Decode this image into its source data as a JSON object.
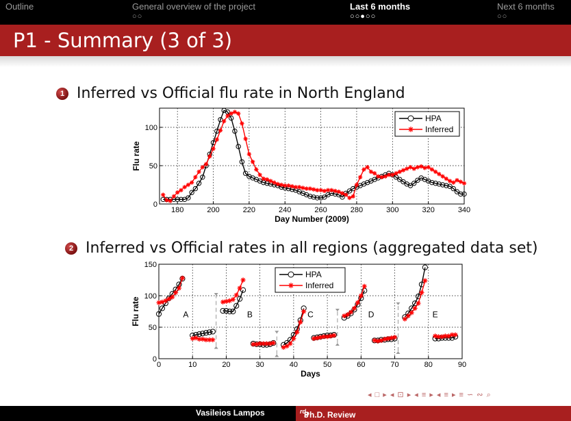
{
  "nav": [
    {
      "label": "Outline",
      "dots": "",
      "active": false
    },
    {
      "label": "General overview of the project",
      "dots": "○○",
      "active": false
    },
    {
      "label": "Last 6 months",
      "dots": "○○●○○",
      "active": true
    },
    {
      "label": "Next 6 months",
      "dots": "○○",
      "active": false
    }
  ],
  "slide": {
    "title": "P1 - Summary (3 of 3)"
  },
  "items": [
    {
      "number": "1",
      "text": "Inferred vs Official flu rate in North England"
    },
    {
      "number": "2",
      "text": "Inferred vs Official rates in all regions (aggregated data set)"
    }
  ],
  "colors": {
    "hpa": "#000000",
    "inferred": "#ff0000",
    "accent": "#a81f1f"
  },
  "chart_data": [
    {
      "type": "line",
      "title": "Inferred vs Official flu rate in North England",
      "xlabel": "Day Number (2009)",
      "ylabel": "Flu rate",
      "xlim": [
        170,
        340
      ],
      "ylim": [
        0,
        125
      ],
      "xticks": [
        180,
        200,
        220,
        240,
        260,
        280,
        300,
        320,
        340
      ],
      "yticks": [
        0,
        50,
        100
      ],
      "grid": true,
      "legend_position": "top-right",
      "series": [
        {
          "name": "HPA",
          "marker": "circle",
          "color": "#000000",
          "x": [
            172,
            174,
            176,
            178,
            180,
            182,
            184,
            186,
            188,
            190,
            192,
            194,
            196,
            198,
            200,
            202,
            204,
            206,
            208,
            210,
            212,
            214,
            216,
            218,
            220,
            222,
            224,
            226,
            228,
            230,
            232,
            234,
            236,
            238,
            240,
            242,
            244,
            246,
            248,
            250,
            252,
            254,
            256,
            258,
            260,
            262,
            264,
            266,
            268,
            270,
            272,
            274,
            276,
            278,
            280,
            282,
            284,
            286,
            288,
            290,
            292,
            294,
            296,
            298,
            300,
            302,
            304,
            306,
            308,
            310,
            312,
            314,
            316,
            318,
            320,
            322,
            324,
            326,
            328,
            330,
            332,
            334,
            336,
            338,
            340
          ],
          "values": [
            6,
            6,
            6,
            6,
            6,
            6,
            6,
            8,
            15,
            20,
            27,
            35,
            50,
            65,
            80,
            95,
            110,
            122,
            120,
            112,
            95,
            75,
            55,
            40,
            36,
            34,
            32,
            30,
            28,
            27,
            26,
            25,
            24,
            22,
            21,
            20,
            19,
            18,
            16,
            14,
            12,
            10,
            9,
            8,
            8,
            9,
            12,
            14,
            13,
            12,
            9,
            14,
            17,
            20,
            22,
            24,
            26,
            28,
            30,
            32,
            34,
            36,
            38,
            40,
            38,
            35,
            32,
            29,
            26,
            24,
            27,
            31,
            34,
            32,
            30,
            28,
            27,
            26,
            25,
            24,
            23,
            20,
            16,
            13,
            13
          ]
        },
        {
          "name": "Inferred",
          "marker": "star",
          "color": "#ff0000",
          "x": [
            172,
            174,
            176,
            178,
            180,
            182,
            184,
            186,
            188,
            190,
            192,
            194,
            196,
            198,
            200,
            202,
            204,
            206,
            208,
            210,
            212,
            214,
            216,
            218,
            220,
            222,
            224,
            226,
            228,
            230,
            232,
            234,
            236,
            238,
            240,
            242,
            244,
            246,
            248,
            250,
            252,
            254,
            256,
            258,
            260,
            262,
            264,
            266,
            268,
            270,
            272,
            274,
            276,
            278,
            280,
            282,
            284,
            286,
            288,
            290,
            292,
            294,
            296,
            298,
            300,
            302,
            304,
            306,
            308,
            310,
            312,
            314,
            316,
            318,
            320,
            322,
            324,
            326,
            328,
            330,
            332,
            334,
            336,
            338,
            340
          ],
          "values": [
            12,
            5,
            4,
            10,
            15,
            18,
            22,
            25,
            28,
            35,
            42,
            48,
            52,
            62,
            72,
            84,
            96,
            108,
            115,
            118,
            120,
            118,
            105,
            85,
            65,
            55,
            45,
            38,
            33,
            32,
            30,
            28,
            26,
            25,
            24,
            24,
            23,
            22,
            22,
            21,
            20,
            20,
            19,
            18,
            18,
            17,
            18,
            18,
            17,
            16,
            14,
            12,
            8,
            10,
            25,
            35,
            45,
            48,
            42,
            40,
            36,
            35,
            36,
            38,
            38,
            40,
            42,
            44,
            46,
            48,
            46,
            48,
            49,
            47,
            48,
            45,
            42,
            39,
            36,
            33,
            30,
            28,
            31,
            29,
            27
          ]
        }
      ]
    },
    {
      "type": "line",
      "title": "Inferred vs Official rates in all regions (aggregated data set)",
      "xlabel": "Days",
      "ylabel": "Flu rate",
      "xlim": [
        0,
        90
      ],
      "ylim": [
        0,
        150
      ],
      "xticks": [
        0,
        10,
        20,
        30,
        40,
        50,
        60,
        70,
        80,
        90
      ],
      "yticks": [
        0,
        50,
        100,
        150
      ],
      "grid": true,
      "legend_position": "top",
      "region_labels": [
        {
          "text": "A",
          "x": 8,
          "y": 66
        },
        {
          "text": "B",
          "x": 27,
          "y": 66
        },
        {
          "text": "C",
          "x": 45,
          "y": 66
        },
        {
          "text": "D",
          "x": 63,
          "y": 66
        },
        {
          "text": "E",
          "x": 82,
          "y": 66
        }
      ],
      "separators": [
        {
          "x": 17,
          "y_from": 20,
          "y_to": 100
        },
        {
          "x": 35,
          "y_from": 7,
          "y_to": 40
        },
        {
          "x": 53,
          "y_from": 25,
          "y_to": 75
        },
        {
          "x": 71,
          "y_from": 12,
          "y_to": 85
        }
      ],
      "series": [
        {
          "name": "HPA",
          "marker": "circle",
          "color": "#000000",
          "segments": [
            {
              "x": [
                0,
                1,
                2,
                3,
                4,
                5,
                6,
                7
              ],
              "values": [
                71,
                80,
                88,
                96,
                103,
                110,
                118,
                127
              ]
            },
            {
              "x": [
                10,
                11,
                12,
                13,
                14,
                15,
                16
              ],
              "values": [
                37,
                38,
                39,
                40,
                41,
                42,
                43
              ]
            },
            {
              "x": [
                19,
                20,
                21,
                22,
                23,
                24,
                25
              ],
              "values": [
                76,
                76,
                75,
                75,
                84,
                95,
                109
              ]
            },
            {
              "x": [
                28,
                29,
                30,
                31,
                32,
                33,
                34
              ],
              "values": [
                24,
                23,
                23,
                22,
                22,
                23,
                25
              ]
            },
            {
              "x": [
                37,
                38,
                39,
                40,
                41,
                42,
                43
              ],
              "values": [
                22,
                25,
                30,
                38,
                47,
                61,
                80
              ]
            },
            {
              "x": [
                46,
                47,
                48,
                49,
                50,
                51,
                52
              ],
              "values": [
                33,
                34,
                35,
                36,
                37,
                37,
                38
              ]
            },
            {
              "x": [
                55,
                56,
                57,
                58,
                59,
                60,
                61
              ],
              "values": [
                65,
                68,
                72,
                78,
                86,
                96,
                108
              ]
            },
            {
              "x": [
                64,
                65,
                66,
                67,
                68,
                69,
                70
              ],
              "values": [
                29,
                29,
                30,
                30,
                31,
                31,
                32
              ]
            },
            {
              "x": [
                73,
                74,
                75,
                76,
                77,
                78,
                79
              ],
              "values": [
                66,
                72,
                80,
                88,
                99,
                118,
                145
              ]
            },
            {
              "x": [
                82,
                83,
                84,
                85,
                86,
                87,
                88
              ],
              "values": [
                32,
                32,
                33,
                33,
                33,
                33,
                35
              ]
            }
          ]
        },
        {
          "name": "Inferred",
          "marker": "star",
          "color": "#ff0000",
          "segments": [
            {
              "x": [
                0,
                1,
                2,
                3,
                4,
                5,
                6,
                7
              ],
              "values": [
                89,
                90,
                92,
                95,
                98,
                105,
                112,
                128
              ]
            },
            {
              "x": [
                10,
                11,
                12,
                13,
                14,
                15,
                16
              ],
              "values": [
                32,
                33,
                31,
                31,
                30,
                30,
                30
              ]
            },
            {
              "x": [
                19,
                20,
                21,
                22,
                23,
                24,
                25
              ],
              "values": [
                90,
                91,
                92,
                94,
                101,
                112,
                125
              ]
            },
            {
              "x": [
                28,
                29,
                30,
                31,
                32,
                33,
                34
              ],
              "values": [
                23,
                23,
                24,
                24,
                24,
                24,
                25
              ]
            },
            {
              "x": [
                37,
                38,
                39,
                40,
                41,
                42,
                43
              ],
              "values": [
                18,
                20,
                24,
                32,
                42,
                58,
                75
              ]
            },
            {
              "x": [
                46,
                47,
                48,
                49,
                50,
                51,
                52
              ],
              "values": [
                32,
                33,
                34,
                35,
                35,
                36,
                37
              ]
            },
            {
              "x": [
                55,
                56,
                57,
                58,
                59,
                60,
                61
              ],
              "values": [
                68,
                70,
                74,
                80,
                89,
                100,
                115
              ]
            },
            {
              "x": [
                64,
                65,
                66,
                67,
                68,
                69,
                70
              ],
              "values": [
                29,
                28,
                29,
                31,
                32,
                33,
                34
              ]
            },
            {
              "x": [
                73,
                74,
                75,
                76,
                77,
                78,
                79
              ],
              "values": [
                63,
                68,
                73,
                80,
                88,
                105,
                124
              ]
            },
            {
              "x": [
                82,
                83,
                84,
                85,
                86,
                87,
                88
              ],
              "values": [
                36,
                35,
                35,
                36,
                36,
                38,
                38
              ]
            }
          ]
        }
      ]
    }
  ],
  "footer": {
    "author": "Vasileios Lampos",
    "talk_num": "3",
    "talk_sup": "rd",
    "talk_rest": " Ph.D. Review"
  },
  "nav_icons": "◂ □ ▸ ◂ ⊡ ▸ ◂ ≡ ▸ ◂ ≡ ▸ ≡ ∽ ∾ ⌕"
}
